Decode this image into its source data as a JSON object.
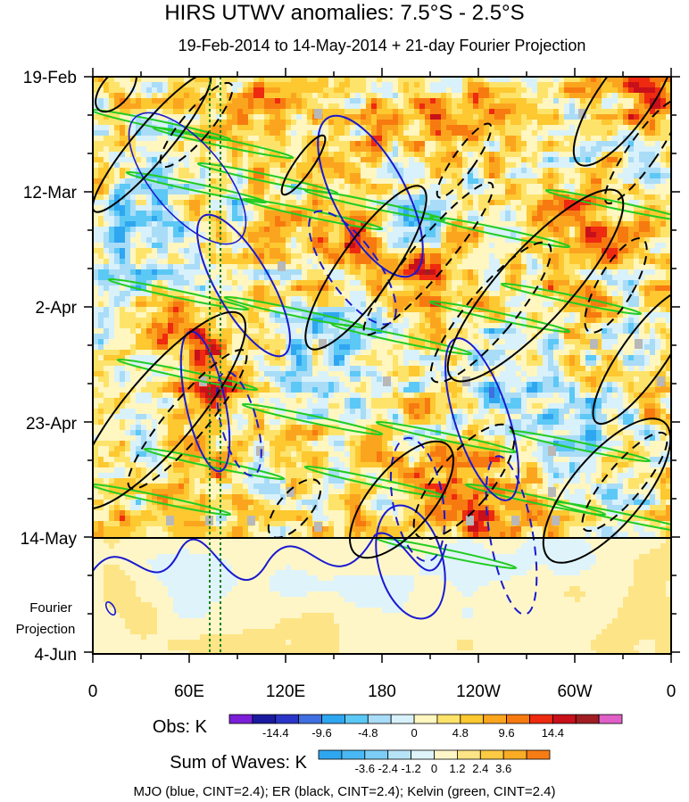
{
  "chart_data": {
    "type": "heatmap",
    "title": "HIRS UTWV anomalies: 7.5°S - 2.5°S",
    "subtitle": "19-Feb-2014 to 14-May-2014 + 21-day Fourier Projection",
    "x_tick_labels": [
      "0",
      "60E",
      "120E",
      "180",
      "120W",
      "60W",
      "0"
    ],
    "x_range_deg_east": [
      0,
      360
    ],
    "y_tick_labels": [
      "19-Feb",
      "12-Mar",
      "2-Apr",
      "23-Apr",
      "14-May",
      "4-Jun"
    ],
    "projection_label": [
      "Fourier",
      "Projection"
    ],
    "projection_start": "14-May",
    "obs_colorbar": {
      "label": "Obs: K",
      "tick_labels": [
        "-14.4",
        "-9.6",
        "-4.8",
        "0",
        "4.8",
        "9.6",
        "14.4"
      ],
      "colors": [
        "#7b1fd8",
        "#1a1aa0",
        "#2a36c8",
        "#3f6fe0",
        "#2fa6f0",
        "#5cc8f5",
        "#a9dcf7",
        "#d8f1fb",
        "#fff6c0",
        "#fde36a",
        "#fdc830",
        "#fba51f",
        "#f77a10",
        "#ee2a10",
        "#c8101a",
        "#a01e22",
        "#e060c8"
      ]
    },
    "waves_colorbar": {
      "label": "Sum of Waves: K",
      "tick_labels": [
        "-3.6",
        "-2.4",
        "-1.2",
        "0",
        "1.2",
        "2.4",
        "3.6"
      ],
      "colors": [
        "#2fa6f0",
        "#49b8f4",
        "#7ccdf6",
        "#b6e3f8",
        "#dff3fb",
        "#fff6c8",
        "#fde486",
        "#fccb43",
        "#f9ac24",
        "#f67c14"
      ]
    },
    "footer": "MJO (blue, CINT=2.4); ER (black, CINT=2.4); Kelvin (green, CINT=2.4)",
    "contour_colors": {
      "mjo": "#1a1ad0",
      "er": "#000000",
      "kelvin": "#22cc22"
    }
  }
}
